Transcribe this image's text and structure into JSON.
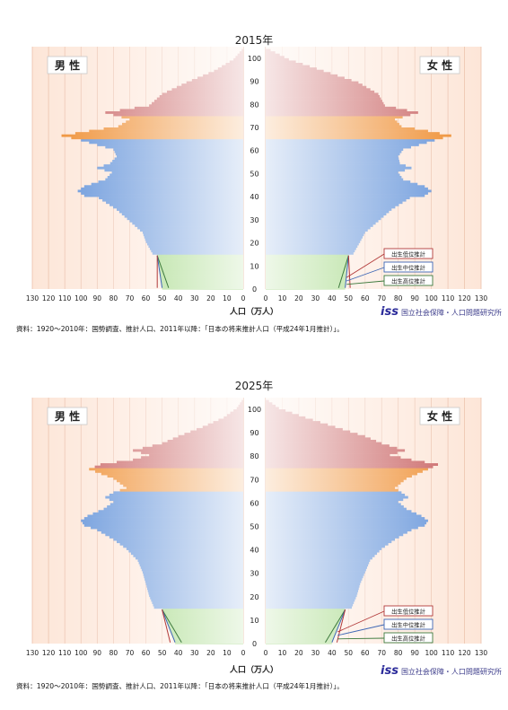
{
  "chart_data": [
    {
      "type": "bar",
      "title": "2015年",
      "male_label": "男 性",
      "female_label": "女 性",
      "xlabel": "人口（万人）",
      "x_ticks": [
        130,
        120,
        110,
        100,
        90,
        80,
        70,
        60,
        50,
        40,
        30,
        20,
        10,
        0
      ],
      "xlim": [
        0,
        130
      ],
      "y_ticks": [
        0,
        10,
        20,
        30,
        40,
        50,
        60,
        70,
        80,
        90,
        100
      ],
      "ylim": [
        0,
        105
      ],
      "legend": [
        "出生低位推計",
        "出生中位推計",
        "出生高位推計"
      ],
      "age_bands": [
        {
          "from": 0,
          "to": 14,
          "color": "#8fd06a"
        },
        {
          "from": 15,
          "to": 64,
          "color": "#5d8fd8"
        },
        {
          "from": 65,
          "to": 74,
          "color": "#ee8a2a"
        },
        {
          "from": 75,
          "to": 105,
          "color": "#c65b5b"
        }
      ],
      "male_profile": [
        [
          0,
          50
        ],
        [
          14,
          53
        ],
        [
          15,
          56
        ],
        [
          20,
          60
        ],
        [
          24,
          62
        ],
        [
          29,
          70
        ],
        [
          34,
          78
        ],
        [
          39,
          89
        ],
        [
          40,
          98
        ],
        [
          42,
          102
        ],
        [
          44,
          98
        ],
        [
          47,
          85
        ],
        [
          50,
          81
        ],
        [
          52,
          90
        ],
        [
          54,
          82
        ],
        [
          57,
          78
        ],
        [
          60,
          80
        ],
        [
          64,
          100
        ],
        [
          66,
          112
        ],
        [
          68,
          95
        ],
        [
          70,
          77
        ],
        [
          73,
          70
        ],
        [
          76,
          85
        ],
        [
          79,
          58
        ],
        [
          84,
          50
        ],
        [
          89,
          35
        ],
        [
          94,
          18
        ],
        [
          99,
          6
        ],
        [
          103,
          1
        ]
      ],
      "female_profile": [
        [
          0,
          48
        ],
        [
          14,
          50
        ],
        [
          15,
          53
        ],
        [
          20,
          57
        ],
        [
          24,
          60
        ],
        [
          29,
          68
        ],
        [
          34,
          76
        ],
        [
          39,
          87
        ],
        [
          40,
          96
        ],
        [
          42,
          100
        ],
        [
          44,
          96
        ],
        [
          47,
          83
        ],
        [
          50,
          80
        ],
        [
          52,
          88
        ],
        [
          54,
          81
        ],
        [
          57,
          80
        ],
        [
          60,
          83
        ],
        [
          64,
          102
        ],
        [
          66,
          112
        ],
        [
          68,
          98
        ],
        [
          70,
          82
        ],
        [
          73,
          78
        ],
        [
          76,
          92
        ],
        [
          79,
          72
        ],
        [
          84,
          68
        ],
        [
          89,
          56
        ],
        [
          94,
          35
        ],
        [
          99,
          14
        ],
        [
          103,
          3
        ]
      ],
      "source": "資料：1920～2010年：国勢調査、推計人口、2011年以降：「日本の将来推計人口（平成24年1月推計）」。",
      "logo_text": "国立社会保障・人口問題研究所"
    },
    {
      "type": "bar",
      "title": "2025年",
      "male_label": "男 性",
      "female_label": "女 性",
      "xlabel": "人口（万人）",
      "x_ticks": [
        130,
        120,
        110,
        100,
        90,
        80,
        70,
        60,
        50,
        40,
        30,
        20,
        10,
        0
      ],
      "xlim": [
        0,
        130
      ],
      "y_ticks": [
        0,
        10,
        20,
        30,
        40,
        50,
        60,
        70,
        80,
        90,
        100
      ],
      "ylim": [
        0,
        105
      ],
      "legend": [
        "出生低位推計",
        "出生中位推計",
        "出生高位推計"
      ],
      "age_bands": [
        {
          "from": 0,
          "to": 14,
          "color": "#8fd06a"
        },
        {
          "from": 15,
          "to": 64,
          "color": "#5d8fd8"
        },
        {
          "from": 65,
          "to": 74,
          "color": "#ee8a2a"
        },
        {
          "from": 75,
          "to": 105,
          "color": "#c65b5b"
        }
      ],
      "male_profile": [
        [
          0,
          42
        ],
        [
          14,
          50
        ],
        [
          15,
          55
        ],
        [
          20,
          58
        ],
        [
          25,
          60
        ],
        [
          30,
          62
        ],
        [
          35,
          65
        ],
        [
          40,
          72
        ],
        [
          44,
          80
        ],
        [
          48,
          90
        ],
        [
          50,
          98
        ],
        [
          52,
          100
        ],
        [
          54,
          96
        ],
        [
          57,
          86
        ],
        [
          60,
          80
        ],
        [
          62,
          85
        ],
        [
          64,
          80
        ],
        [
          66,
          72
        ],
        [
          70,
          80
        ],
        [
          74,
          95
        ],
        [
          76,
          88
        ],
        [
          78,
          68
        ],
        [
          80,
          58
        ],
        [
          82,
          68
        ],
        [
          85,
          50
        ],
        [
          88,
          40
        ],
        [
          92,
          25
        ],
        [
          96,
          12
        ],
        [
          100,
          4
        ],
        [
          103,
          1
        ]
      ],
      "female_profile": [
        [
          0,
          40
        ],
        [
          14,
          48
        ],
        [
          15,
          52
        ],
        [
          20,
          55
        ],
        [
          25,
          57
        ],
        [
          30,
          60
        ],
        [
          35,
          63
        ],
        [
          40,
          70
        ],
        [
          44,
          78
        ],
        [
          48,
          88
        ],
        [
          50,
          96
        ],
        [
          52,
          98
        ],
        [
          54,
          94
        ],
        [
          57,
          85
        ],
        [
          60,
          80
        ],
        [
          62,
          86
        ],
        [
          64,
          82
        ],
        [
          66,
          78
        ],
        [
          70,
          85
        ],
        [
          74,
          98
        ],
        [
          76,
          104
        ],
        [
          78,
          88
        ],
        [
          80,
          75
        ],
        [
          82,
          84
        ],
        [
          85,
          70
        ],
        [
          88,
          60
        ],
        [
          92,
          42
        ],
        [
          96,
          24
        ],
        [
          100,
          8
        ],
        [
          103,
          2
        ]
      ],
      "source": "資料：1920～2010年：国勢調査、推計人口、2011年以降：「日本の将来推計人口（平成24年1月推計）」。",
      "logo_text": "国立社会保障・人口問題研究所"
    }
  ]
}
